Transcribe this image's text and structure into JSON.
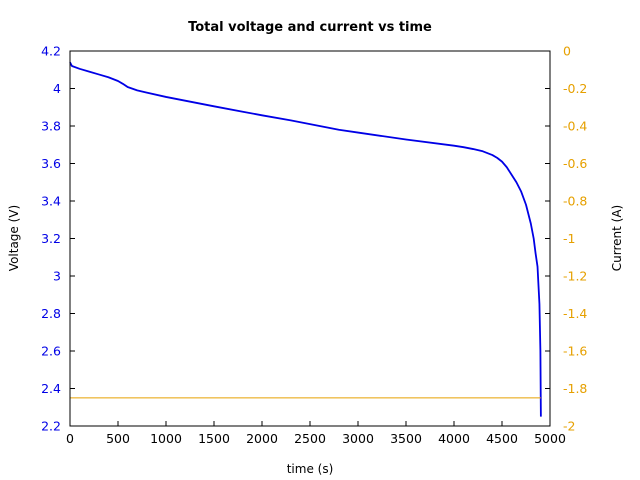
{
  "chart_data": {
    "type": "line",
    "title": "Total voltage and current vs time",
    "xlabel": "time (s)",
    "ylabel": "Voltage (V)",
    "y2label": "Current (A)",
    "xlim": [
      0,
      5000
    ],
    "ylim": [
      2.2,
      4.2
    ],
    "y2lim": [
      -2,
      0
    ],
    "x_ticks": [
      "0",
      "500",
      "1000",
      "1500",
      "2000",
      "2500",
      "3000",
      "3500",
      "4000",
      "4500",
      "5000"
    ],
    "y_ticks": [
      "2.2",
      "2.4",
      "2.6",
      "2.8",
      "3",
      "3.2",
      "3.4",
      "3.6",
      "3.8",
      "4",
      "4.2"
    ],
    "y2_ticks": [
      "-2",
      "-1.8",
      "-1.6",
      "-1.4",
      "-1.2",
      "-1",
      "-0.8",
      "-0.6",
      "-0.4",
      "-0.2",
      "0"
    ],
    "grid": false,
    "colors": {
      "voltage": "#0000e6",
      "current": "#e6a000",
      "axis_left": "#0000e6",
      "axis_right": "#e6a000"
    },
    "series": [
      {
        "axis": "left",
        "x": [
          0,
          20,
          100,
          200,
          300,
          400,
          500,
          550,
          600,
          700,
          800,
          1000,
          1200,
          1500,
          1800,
          2000,
          2300,
          2500,
          2800,
          3000,
          3500,
          4000,
          4100,
          4200,
          4300,
          4400,
          4450,
          4500,
          4550,
          4600,
          4650,
          4700,
          4750,
          4800,
          4830,
          4850,
          4870,
          4880,
          4890,
          4900,
          4905
        ],
        "y": [
          4.14,
          4.12,
          4.105,
          4.09,
          4.075,
          4.06,
          4.04,
          4.025,
          4.008,
          3.99,
          3.978,
          3.955,
          3.935,
          3.905,
          3.876,
          3.857,
          3.83,
          3.81,
          3.78,
          3.765,
          3.728,
          3.695,
          3.687,
          3.677,
          3.665,
          3.645,
          3.63,
          3.61,
          3.58,
          3.54,
          3.5,
          3.45,
          3.38,
          3.28,
          3.2,
          3.12,
          3.05,
          2.95,
          2.85,
          2.6,
          2.25
        ]
      },
      {
        "axis": "right",
        "x": [
          0,
          4905
        ],
        "y": [
          -1.85,
          -1.85
        ]
      }
    ]
  }
}
